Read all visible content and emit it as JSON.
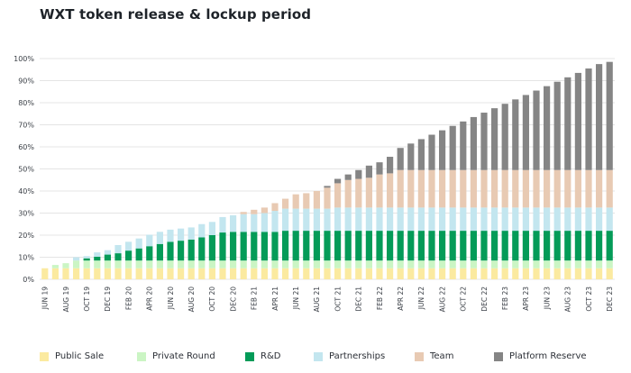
{
  "title": "WXT token release & lockup period",
  "chart_data": {
    "type": "bar",
    "stacked": true,
    "title": "WXT token release & lockup period",
    "ylim": [
      0,
      100
    ],
    "yticks": [
      "0%",
      "10%",
      "20%",
      "30%",
      "40%",
      "50%",
      "60%",
      "70%",
      "80%",
      "90%",
      "100%"
    ],
    "grid": true,
    "legend_position": "bottom",
    "categories": [
      "JUN 19",
      "JUL 19",
      "AUG 19",
      "SEP 19",
      "OCT 19",
      "NOV 19",
      "DEC 19",
      "JAN 20",
      "FEB 20",
      "MAR 20",
      "APR 20",
      "MAY 20",
      "JUN 20",
      "JUL 20",
      "AUG 20",
      "SEP 20",
      "OCT 20",
      "NOV 20",
      "DEC 20",
      "JAN 21",
      "FEB 21",
      "MAR 21",
      "APR 21",
      "MAY 21",
      "JUN 21",
      "JUL 21",
      "AUG 21",
      "SEP 21",
      "OCT 21",
      "NOV 21",
      "DEC 21",
      "JAN 22",
      "FEB 22",
      "MAR 22",
      "APR 22",
      "MAY 22",
      "JUN 22",
      "JUL 22",
      "AUG 22",
      "SEP 22",
      "OCT 22",
      "NOV 22",
      "DEC 22",
      "JAN 23",
      "FEB 23",
      "MAR 23",
      "APR 23",
      "MAY 23",
      "JUN 23",
      "JUL 23",
      "AUG 23",
      "SEP 23",
      "OCT 23",
      "NOV 23",
      "DEC 23"
    ],
    "xtick_labels": [
      "JUN 19",
      "AUG 19",
      "OCT 19",
      "DEC 19",
      "FEB 20",
      "APR 20",
      "JUN 20",
      "AUG 20",
      "OCT 20",
      "DEC 20",
      "FEB 21",
      "APR 21",
      "JUN 21",
      "AUG 21",
      "OCT 21",
      "DEC 21",
      "FEB 22",
      "APR 22",
      "JUN 22",
      "AUG 22",
      "OCT 22",
      "DEC 22",
      "FEB 23",
      "APR 23",
      "JUN 23",
      "AUG 23",
      "OCT 23",
      "DEC 23"
    ],
    "series": [
      {
        "name": "Public Sale",
        "color": "#fbeaa0",
        "values": [
          5,
          5,
          5,
          5,
          5,
          5,
          5,
          5,
          5,
          5,
          5,
          5,
          5,
          5,
          5,
          5,
          5,
          5,
          5,
          5,
          5,
          5,
          5,
          5,
          5,
          5,
          5,
          5,
          5,
          5,
          5,
          5,
          5,
          5,
          5,
          5,
          5,
          5,
          5,
          5,
          5,
          5,
          5,
          5,
          5,
          5,
          5,
          5,
          5,
          5,
          5,
          5,
          5,
          5,
          5
        ]
      },
      {
        "name": "Private Round",
        "color": "#cbf5c4",
        "values": [
          0,
          1.5,
          2.3,
          3.5,
          3.5,
          3.5,
          3.5,
          3.5,
          3.5,
          3.5,
          3.5,
          3.5,
          3.5,
          3.5,
          3.5,
          3.5,
          3.5,
          3.5,
          3.5,
          3.5,
          3.5,
          3.5,
          3.5,
          3.5,
          3.5,
          3.5,
          3.5,
          3.5,
          3.5,
          3.5,
          3.5,
          3.5,
          3.5,
          3.5,
          3.5,
          3.5,
          3.5,
          3.5,
          3.5,
          3.5,
          3.5,
          3.5,
          3.5,
          3.5,
          3.5,
          3.5,
          3.5,
          3.5,
          3.5,
          3.5,
          3.5,
          3.5,
          3.5,
          3.5,
          3.5
        ]
      },
      {
        "name": "R&D",
        "color": "#049b58",
        "values": [
          0,
          0,
          0,
          0,
          1,
          1.7,
          2.7,
          3.3,
          4.5,
          5.5,
          6.5,
          7.5,
          8.5,
          9,
          9.5,
          10.5,
          11.5,
          12.7,
          13,
          13,
          13,
          13,
          13,
          13.5,
          13.5,
          13.5,
          13.5,
          13.5,
          13.5,
          13.5,
          13.5,
          13.5,
          13.5,
          13.5,
          13.5,
          13.5,
          13.5,
          13.5,
          13.5,
          13.5,
          13.5,
          13.5,
          13.5,
          13.5,
          13.5,
          13.5,
          13.5,
          13.5,
          13.5,
          13.5,
          13.5,
          13.5,
          13.5,
          13.5,
          13.5
        ]
      },
      {
        "name": "Partnerships",
        "color": "#c3e6ef",
        "values": [
          0,
          0,
          0,
          1.5,
          1,
          2,
          2,
          3.7,
          4,
          4.5,
          5.2,
          5.5,
          5.5,
          5.5,
          5.5,
          6,
          6,
          7,
          7.5,
          8,
          8,
          8.5,
          9.5,
          10,
          10,
          10,
          10,
          10,
          10.5,
          10.5,
          10.5,
          10.5,
          10.5,
          10.5,
          10.5,
          10.5,
          10.5,
          10.5,
          10.5,
          10.5,
          10.5,
          10.5,
          10.5,
          10.5,
          10.5,
          10.5,
          10.5,
          10.5,
          10.5,
          10.5,
          10.5,
          10.5,
          10.5,
          10.5,
          10.5
        ]
      },
      {
        "name": "Team",
        "color": "#e8cab3",
        "values": [
          0,
          0,
          0,
          0,
          0,
          0,
          0,
          0,
          0,
          0,
          0,
          0,
          0,
          0,
          0,
          0,
          0,
          0,
          0,
          1,
          2,
          2.5,
          3.5,
          4.5,
          6.5,
          7,
          8,
          9.5,
          11,
          12.5,
          13,
          13.5,
          15,
          15.5,
          17,
          17,
          17,
          17,
          17,
          17,
          17,
          17,
          17,
          17,
          17,
          17,
          17,
          17,
          17,
          17,
          17,
          17,
          17,
          17,
          17
        ]
      },
      {
        "name": "Platform Reserve",
        "color": "#858585",
        "values": [
          0,
          0,
          0,
          0,
          0,
          0,
          0,
          0,
          0,
          0,
          0,
          0,
          0,
          0,
          0,
          0,
          0,
          0,
          0,
          0,
          0,
          0,
          0,
          0,
          0,
          0,
          0,
          0.8,
          2,
          2.5,
          4,
          5.5,
          5.5,
          7.5,
          10,
          12,
          14,
          16,
          18,
          20,
          22,
          24,
          26,
          28,
          30,
          32,
          34,
          36,
          38,
          40,
          42,
          44,
          46,
          48,
          49
        ]
      }
    ]
  }
}
